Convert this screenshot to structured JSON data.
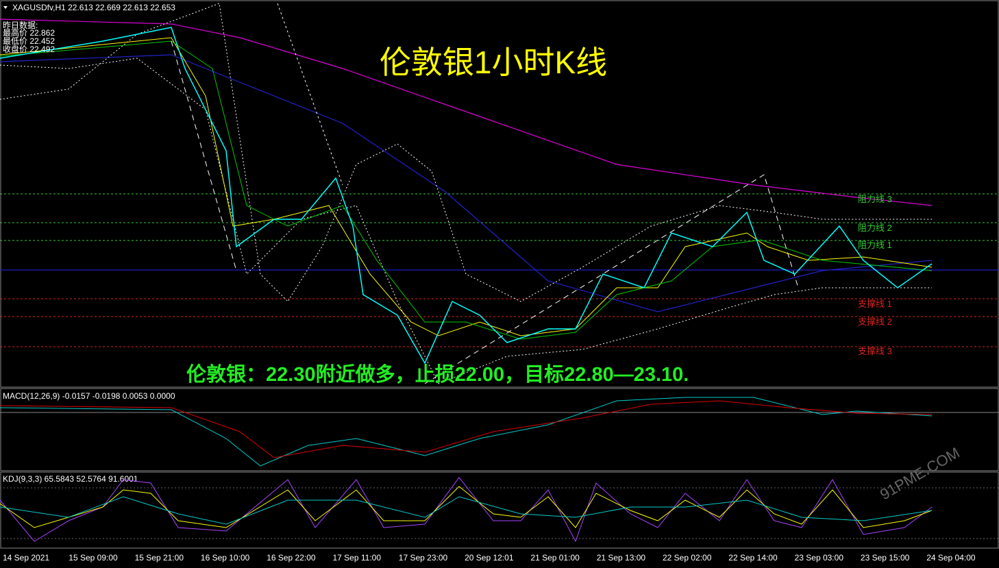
{
  "header": {
    "symbol": "XAGUSDfv,H1  22.613 22.669 22.613 22.653"
  },
  "info": {
    "title": "昨日数据:",
    "high": "最高价 22.862",
    "low": "最低价 22.452",
    "close": "收盘价 22.492"
  },
  "title": "伦敦银1小时K线",
  "levels": {
    "r3": "阻力线 3",
    "r2": "阻力线 2",
    "r1": "阻力线 1",
    "s1": "支撑线 1",
    "s2": "支撑线 2",
    "s3": "支撑线 3"
  },
  "annotation": "伦敦银：22.30附近做多，止损22.00，目标22.80—23.10.",
  "macd": "MACD(12,26,9) -0.0157 -0.0198 0.0053 0.0000",
  "kdj": "KDJ(9,3,3) 65.5843 52.5764 91.6001",
  "watermark": "91PME.COM",
  "x_labels": [
    "14 Sep 2021",
    "15 Sep 09:00",
    "15 Sep 21:00",
    "16 Sep 10:00",
    "16 Sep 22:00",
    "17 Sep 11:00",
    "17 Sep 23:00",
    "20 Sep 12:01",
    "21 Sep 01:00",
    "21 Sep 13:00",
    "22 Sep 02:00",
    "22 Sep 14:00",
    "23 Sep 03:00",
    "23 Sep 15:00",
    "24 Sep 04:00"
  ]
}
